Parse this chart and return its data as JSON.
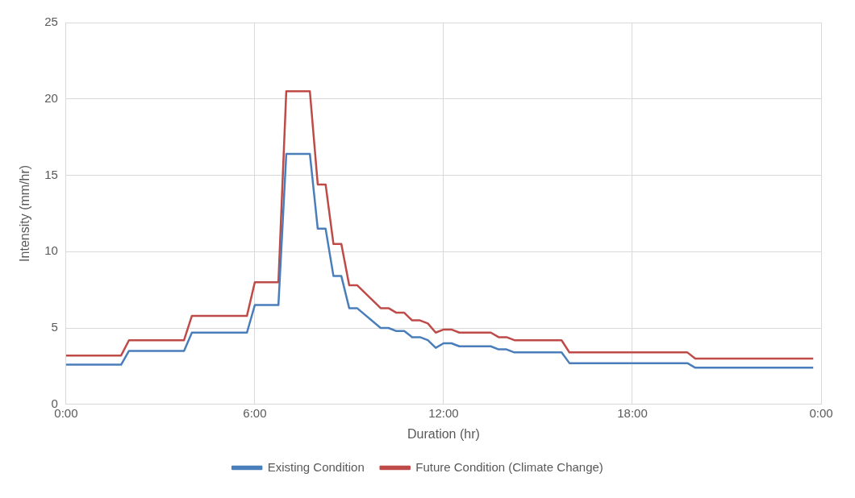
{
  "chart_data": {
    "type": "line",
    "xlabel": "Duration (hr)",
    "ylabel": "Intensity (mm/hr)",
    "xlim": [
      0,
      24
    ],
    "xticks": [
      {
        "value": 0,
        "label": "0:00"
      },
      {
        "value": 6,
        "label": "6:00"
      },
      {
        "value": 12,
        "label": "12:00"
      },
      {
        "value": 18,
        "label": "18:00"
      },
      {
        "value": 24,
        "label": "0:00"
      }
    ],
    "ylim": [
      0,
      25
    ],
    "yticks": [
      0,
      5,
      10,
      15,
      20,
      25
    ],
    "grid": true,
    "legend": "bottom",
    "marker": "none",
    "line_style": "solid",
    "series": [
      {
        "name": "Existing Condition",
        "color": "#4a7ebb",
        "x": [
          0,
          1.75,
          2,
          3.75,
          4,
          5.75,
          6,
          6.75,
          7,
          7.75,
          8,
          8.25,
          8.5,
          8.75,
          9,
          9.25,
          10,
          10.25,
          10.5,
          10.75,
          11,
          11.25,
          11.5,
          11.75,
          12,
          12.25,
          12.5,
          13.5,
          13.75,
          14,
          14.25,
          15.75,
          16,
          19.75,
          20,
          23.75
        ],
        "values": [
          2.6,
          2.6,
          3.5,
          3.5,
          4.7,
          4.7,
          6.5,
          6.5,
          16.4,
          16.4,
          11.5,
          11.5,
          8.4,
          8.4,
          6.3,
          6.3,
          5,
          5,
          4.8,
          4.8,
          4.4,
          4.4,
          4.2,
          3.7,
          4,
          4,
          3.8,
          3.8,
          3.6,
          3.6,
          3.4,
          3.4,
          2.7,
          2.7,
          2.4,
          2.4
        ]
      },
      {
        "name": "Future Condition (Climate Change)",
        "color": "#be4b48",
        "x": [
          0,
          1.75,
          2,
          3.75,
          4,
          5.75,
          6,
          6.75,
          7,
          7.75,
          8,
          8.25,
          8.5,
          8.75,
          9,
          9.25,
          10,
          10.25,
          10.5,
          10.75,
          11,
          11.25,
          11.5,
          11.75,
          12,
          12.25,
          12.5,
          13.5,
          13.75,
          14,
          14.25,
          15.75,
          16,
          19.75,
          20,
          23.75
        ],
        "values": [
          3.2,
          3.2,
          4.2,
          4.2,
          5.8,
          5.8,
          8,
          8,
          20.5,
          20.5,
          14.4,
          14.4,
          10.5,
          10.5,
          7.8,
          7.8,
          6.3,
          6.3,
          6,
          6,
          5.5,
          5.5,
          5.3,
          4.7,
          4.9,
          4.9,
          4.7,
          4.7,
          4.4,
          4.4,
          4.2,
          4.2,
          3.4,
          3.4,
          3,
          3
        ]
      }
    ]
  }
}
